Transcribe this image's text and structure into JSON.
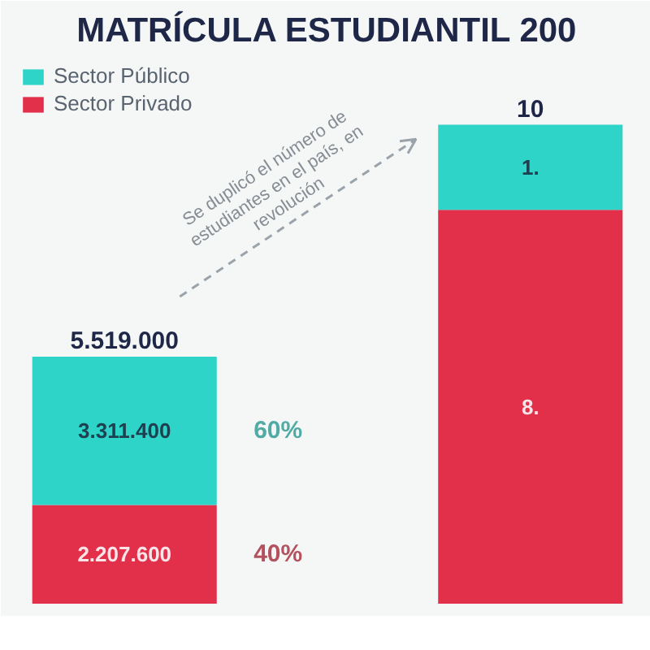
{
  "chart_data": {
    "type": "bar",
    "title": "MATRÍCULA ESTUDIANTIL 200",
    "categories": [
      null,
      null
    ],
    "stacked": true,
    "series": [
      {
        "name": "Sector Privado",
        "color": "#e2304a",
        "values": [
          2207600,
          8800000
        ],
        "value_labels": [
          "2.207.600",
          null
        ]
      },
      {
        "name": "Sector Público",
        "color": "#2fd4c8",
        "values": [
          3311400,
          1900000
        ],
        "value_labels": [
          "3.311.400",
          null
        ]
      }
    ],
    "totals": [
      "5.519.000",
      null
    ],
    "annotations": [
      "Se duplicó el número de estudiantes en el país, en revolución",
      "60%",
      "40%",
      "10",
      "1.",
      "8."
    ],
    "legend": "top left",
    "grid": false,
    "tick_labels": false
  }
}
